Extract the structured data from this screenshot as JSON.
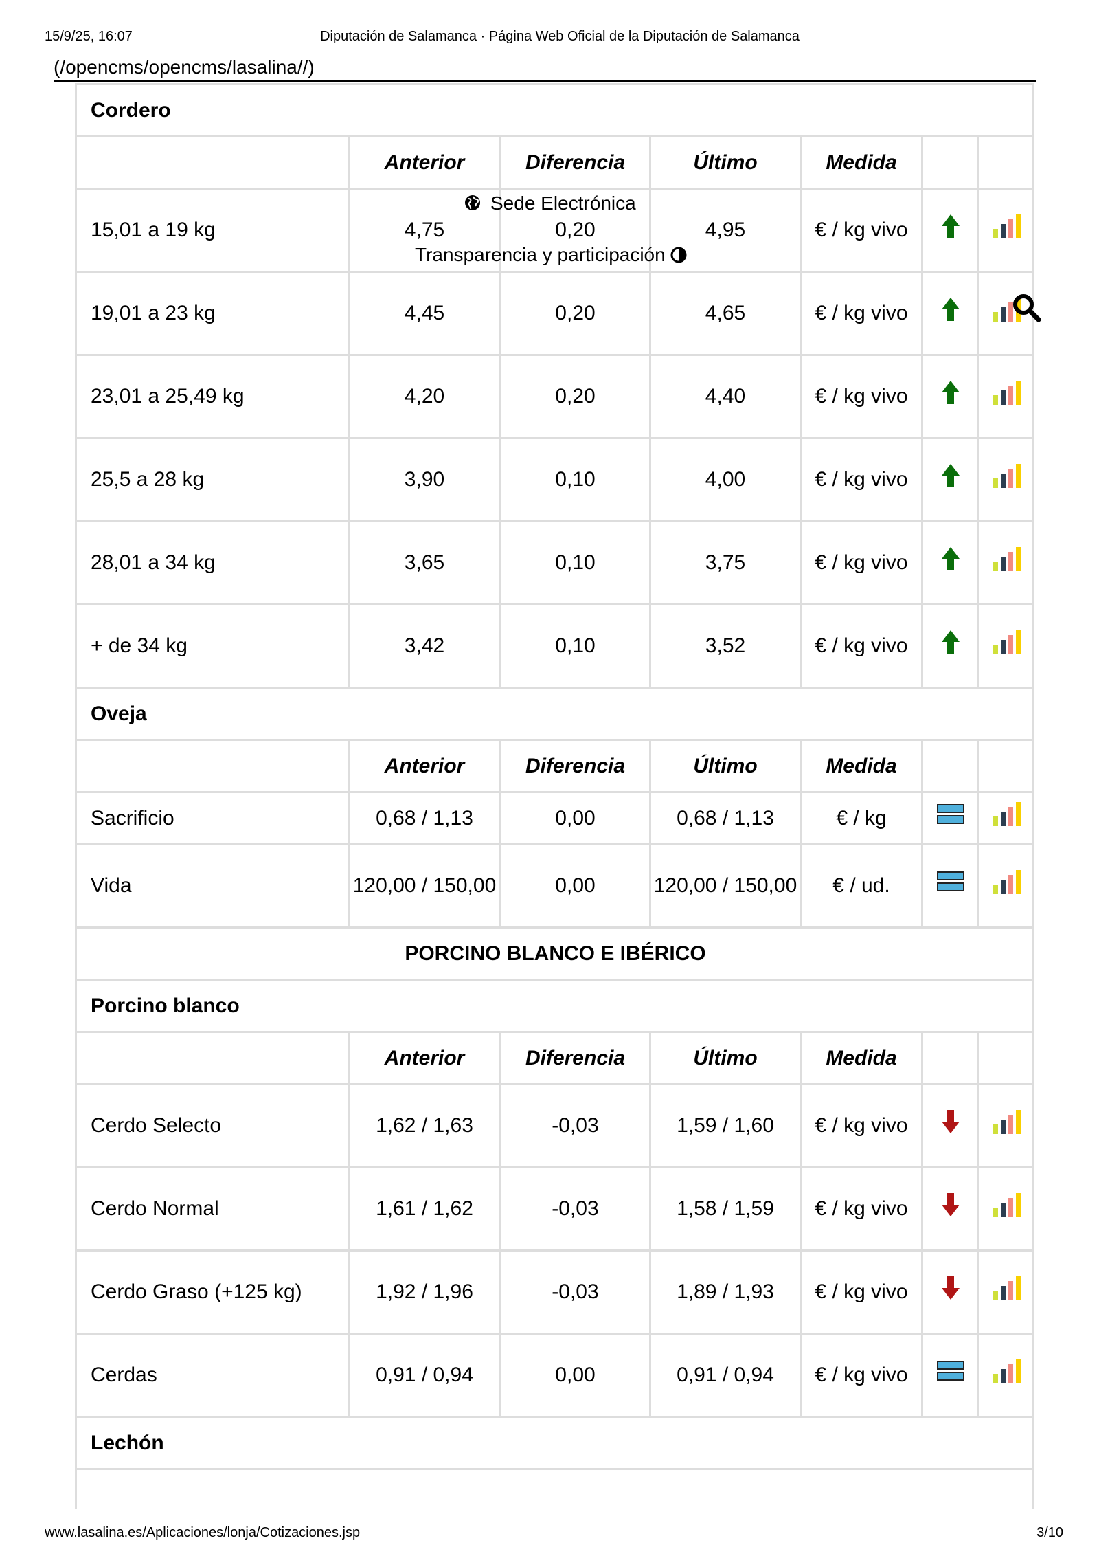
{
  "print_header": {
    "date": "15/9/25, 16:07",
    "title": "Diputación de Salamanca · Página Web Oficial de la Diputación de Salamanca"
  },
  "url_text": "(/opencms/opencms/lasalina//)",
  "overlay": {
    "sede": "Sede Electrónica",
    "transparencia": "Transparencia y participación"
  },
  "columns": [
    "",
    "Anterior",
    "Diferencia",
    "Último",
    "Medida",
    "",
    ""
  ],
  "colors": {
    "up": "#0a6e0a",
    "down": "#b01515",
    "equal": "#4fb0dc",
    "bars": [
      "#cfe03a",
      "#2c3e50",
      "#f28b82",
      "#f9d000"
    ]
  },
  "rows": [
    {
      "type": "sec",
      "label": "Cordero"
    },
    {
      "type": "hdr"
    },
    {
      "type": "d2",
      "label": "15,01 a 19 kg",
      "anterior": "4,75",
      "diferencia": "0,20",
      "ultimo": "4,95",
      "medida": "€ / kg vivo",
      "trend": "up"
    },
    {
      "type": "d2",
      "label": "19,01 a 23 kg",
      "anterior": "4,45",
      "diferencia": "0,20",
      "ultimo": "4,65",
      "medida": "€ / kg vivo",
      "trend": "up"
    },
    {
      "type": "d2",
      "label": "23,01 a 25,49 kg",
      "anterior": "4,20",
      "diferencia": "0,20",
      "ultimo": "4,40",
      "medida": "€ / kg vivo",
      "trend": "up"
    },
    {
      "type": "d2",
      "label": "25,5 a 28 kg",
      "anterior": "3,90",
      "diferencia": "0,10",
      "ultimo": "4,00",
      "medida": "€ / kg vivo",
      "trend": "up"
    },
    {
      "type": "d2",
      "label": "28,01 a 34 kg",
      "anterior": "3,65",
      "diferencia": "0,10",
      "ultimo": "3,75",
      "medida": "€ / kg vivo",
      "trend": "up"
    },
    {
      "type": "d2",
      "label": "+ de 34 kg",
      "anterior": "3,42",
      "diferencia": "0,10",
      "ultimo": "3,52",
      "medida": "€ / kg vivo",
      "trend": "up"
    },
    {
      "type": "sec",
      "label": "Oveja"
    },
    {
      "type": "hdr"
    },
    {
      "type": "d1",
      "label": "Sacrificio",
      "anterior": "0,68 / 1,13",
      "diferencia": "0,00",
      "ultimo": "0,68 / 1,13",
      "medida": "€ / kg",
      "trend": "equal"
    },
    {
      "type": "d2",
      "label": "Vida",
      "anterior": "120,00 / 150,00",
      "diferencia": "0,00",
      "ultimo": "120,00 / 150,00",
      "medida": "€ / ud.",
      "trend": "equal"
    },
    {
      "type": "cat",
      "label": "PORCINO BLANCO E IBÉRICO"
    },
    {
      "type": "sec",
      "label": "Porcino blanco"
    },
    {
      "type": "hdr"
    },
    {
      "type": "d2",
      "label": "Cerdo Selecto",
      "anterior": "1,62 / 1,63",
      "diferencia": "-0,03",
      "ultimo": "1,59 / 1,60",
      "medida": "€ / kg vivo",
      "trend": "down"
    },
    {
      "type": "d2",
      "label": "Cerdo Normal",
      "anterior": "1,61 / 1,62",
      "diferencia": "-0,03",
      "ultimo": "1,58 / 1,59",
      "medida": "€ / kg vivo",
      "trend": "down"
    },
    {
      "type": "d2",
      "label": "Cerdo Graso (+125 kg)",
      "anterior": "1,92 / 1,96",
      "diferencia": "-0,03",
      "ultimo": "1,89 / 1,93",
      "medida": "€ / kg vivo",
      "trend": "down"
    },
    {
      "type": "d2",
      "label": "Cerdas",
      "anterior": "0,91 / 0,94",
      "diferencia": "0,00",
      "ultimo": "0,91 / 0,94",
      "medida": "€ / kg vivo",
      "trend": "equal"
    },
    {
      "type": "sec",
      "label": "Lechón"
    }
  ],
  "footer": {
    "url": "www.lasalina.es/Aplicaciones/lonja/Cotizaciones.jsp",
    "page": "3/10"
  }
}
